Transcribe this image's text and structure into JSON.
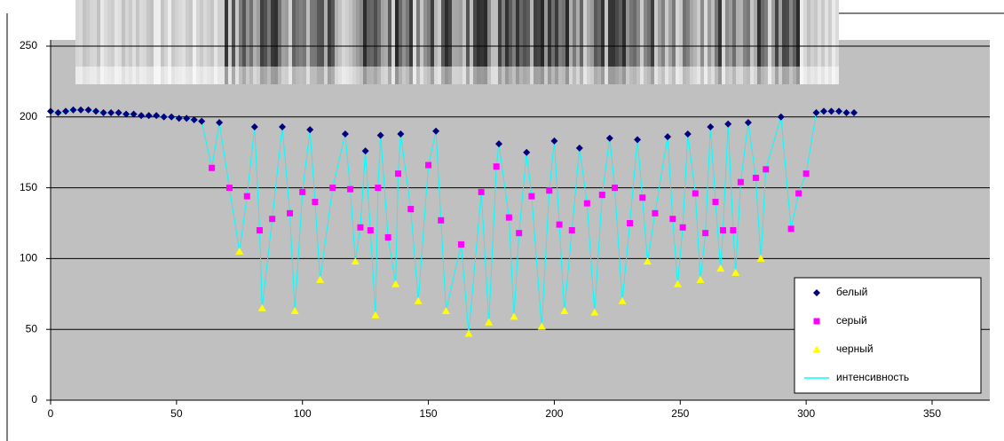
{
  "chart_data": {
    "type": "scatter",
    "xlim": [
      0,
      373
    ],
    "xticks": [
      0,
      50,
      100,
      150,
      200,
      250,
      300,
      350
    ],
    "ylim": [
      0,
      250
    ],
    "yticks": [
      0,
      50,
      100,
      150,
      200,
      250
    ],
    "grid": true,
    "legend": "bottom-right",
    "series": [
      {
        "name": "белый",
        "color": "#000080",
        "marker": "diamond",
        "x": [
          0,
          3,
          6,
          9,
          12,
          15,
          18,
          21,
          24,
          27,
          30,
          33,
          36,
          39,
          42,
          45,
          48,
          51,
          54,
          57,
          60,
          67,
          81,
          92,
          103,
          117,
          125,
          131,
          139,
          153,
          178,
          189,
          200,
          210,
          222,
          233,
          245,
          253,
          262,
          269,
          277,
          290,
          304,
          307,
          310,
          313,
          316,
          319
        ],
        "values": [
          204,
          203,
          204,
          205,
          205,
          205,
          204,
          203,
          203,
          203,
          202,
          202,
          201,
          201,
          201,
          200,
          200,
          199,
          199,
          198,
          197,
          196,
          193,
          193,
          191,
          188,
          176,
          187,
          188,
          190,
          181,
          175,
          183,
          178,
          185,
          184,
          186,
          188,
          193,
          195,
          196,
          200,
          203,
          204,
          204,
          204,
          203,
          203
        ]
      },
      {
        "name": "серый",
        "color": "#ff00ff",
        "marker": "square",
        "x": [
          64,
          71,
          78,
          83,
          88,
          95,
          100,
          105,
          112,
          119,
          123,
          127,
          130,
          134,
          138,
          143,
          150,
          155,
          163,
          171,
          177,
          182,
          186,
          191,
          198,
          202,
          207,
          213,
          219,
          224,
          230,
          235,
          240,
          247,
          251,
          256,
          260,
          264,
          267,
          271,
          274,
          280,
          284,
          294,
          297,
          300
        ],
        "values": [
          164,
          150,
          144,
          120,
          128,
          132,
          147,
          140,
          150,
          149,
          122,
          120,
          150,
          115,
          160,
          135,
          166,
          127,
          110,
          147,
          165,
          129,
          118,
          144,
          148,
          124,
          120,
          139,
          145,
          150,
          125,
          143,
          132,
          128,
          122,
          146,
          118,
          140,
          120,
          120,
          154,
          157,
          163,
          121,
          146,
          160
        ]
      },
      {
        "name": "черный",
        "color": "#ffff00",
        "marker": "triangle",
        "x": [
          75,
          84,
          97,
          107,
          121,
          129,
          137,
          146,
          157,
          166,
          174,
          184,
          195,
          204,
          216,
          227,
          237,
          249,
          258,
          266,
          272,
          282
        ],
        "values": [
          105,
          65,
          63,
          85,
          98,
          60,
          82,
          70,
          63,
          47,
          55,
          59,
          52,
          63,
          62,
          70,
          98,
          82,
          85,
          93,
          90,
          100
        ]
      },
      {
        "name": "интенсивность",
        "color": "#00ffff",
        "marker": "line",
        "x": [
          0,
          3,
          6,
          9,
          12,
          15,
          18,
          21,
          24,
          27,
          30,
          33,
          36,
          39,
          42,
          45,
          48,
          51,
          54,
          57,
          60,
          64,
          67,
          71,
          75,
          78,
          81,
          83,
          84,
          88,
          92,
          95,
          97,
          100,
          103,
          105,
          107,
          112,
          117,
          119,
          121,
          123,
          125,
          127,
          129,
          130,
          131,
          134,
          137,
          138,
          139,
          143,
          146,
          150,
          153,
          155,
          157,
          163,
          166,
          171,
          174,
          177,
          178,
          182,
          184,
          186,
          189,
          191,
          195,
          198,
          200,
          202,
          204,
          207,
          210,
          213,
          216,
          219,
          222,
          224,
          227,
          230,
          233,
          235,
          237,
          240,
          245,
          247,
          249,
          251,
          253,
          256,
          258,
          260,
          262,
          264,
          266,
          267,
          269,
          271,
          272,
          274,
          277,
          280,
          282,
          284,
          290,
          294,
          297,
          300,
          304,
          307,
          310,
          313,
          316,
          319
        ],
        "values": [
          204,
          203,
          204,
          205,
          205,
          205,
          204,
          203,
          203,
          203,
          202,
          202,
          201,
          201,
          201,
          200,
          200,
          199,
          199,
          198,
          197,
          164,
          196,
          150,
          105,
          144,
          193,
          120,
          65,
          128,
          193,
          132,
          63,
          147,
          191,
          140,
          85,
          150,
          188,
          149,
          98,
          122,
          176,
          120,
          60,
          150,
          187,
          115,
          82,
          160,
          188,
          135,
          70,
          166,
          190,
          127,
          63,
          110,
          47,
          147,
          55,
          165,
          181,
          129,
          59,
          118,
          175,
          144,
          52,
          148,
          183,
          124,
          63,
          120,
          178,
          139,
          62,
          145,
          185,
          150,
          70,
          125,
          184,
          143,
          98,
          132,
          186,
          128,
          82,
          122,
          188,
          146,
          85,
          118,
          193,
          140,
          93,
          120,
          195,
          120,
          90,
          154,
          196,
          157,
          100,
          163,
          200,
          121,
          146,
          160,
          203,
          204,
          204,
          204,
          203,
          203
        ]
      }
    ]
  }
}
